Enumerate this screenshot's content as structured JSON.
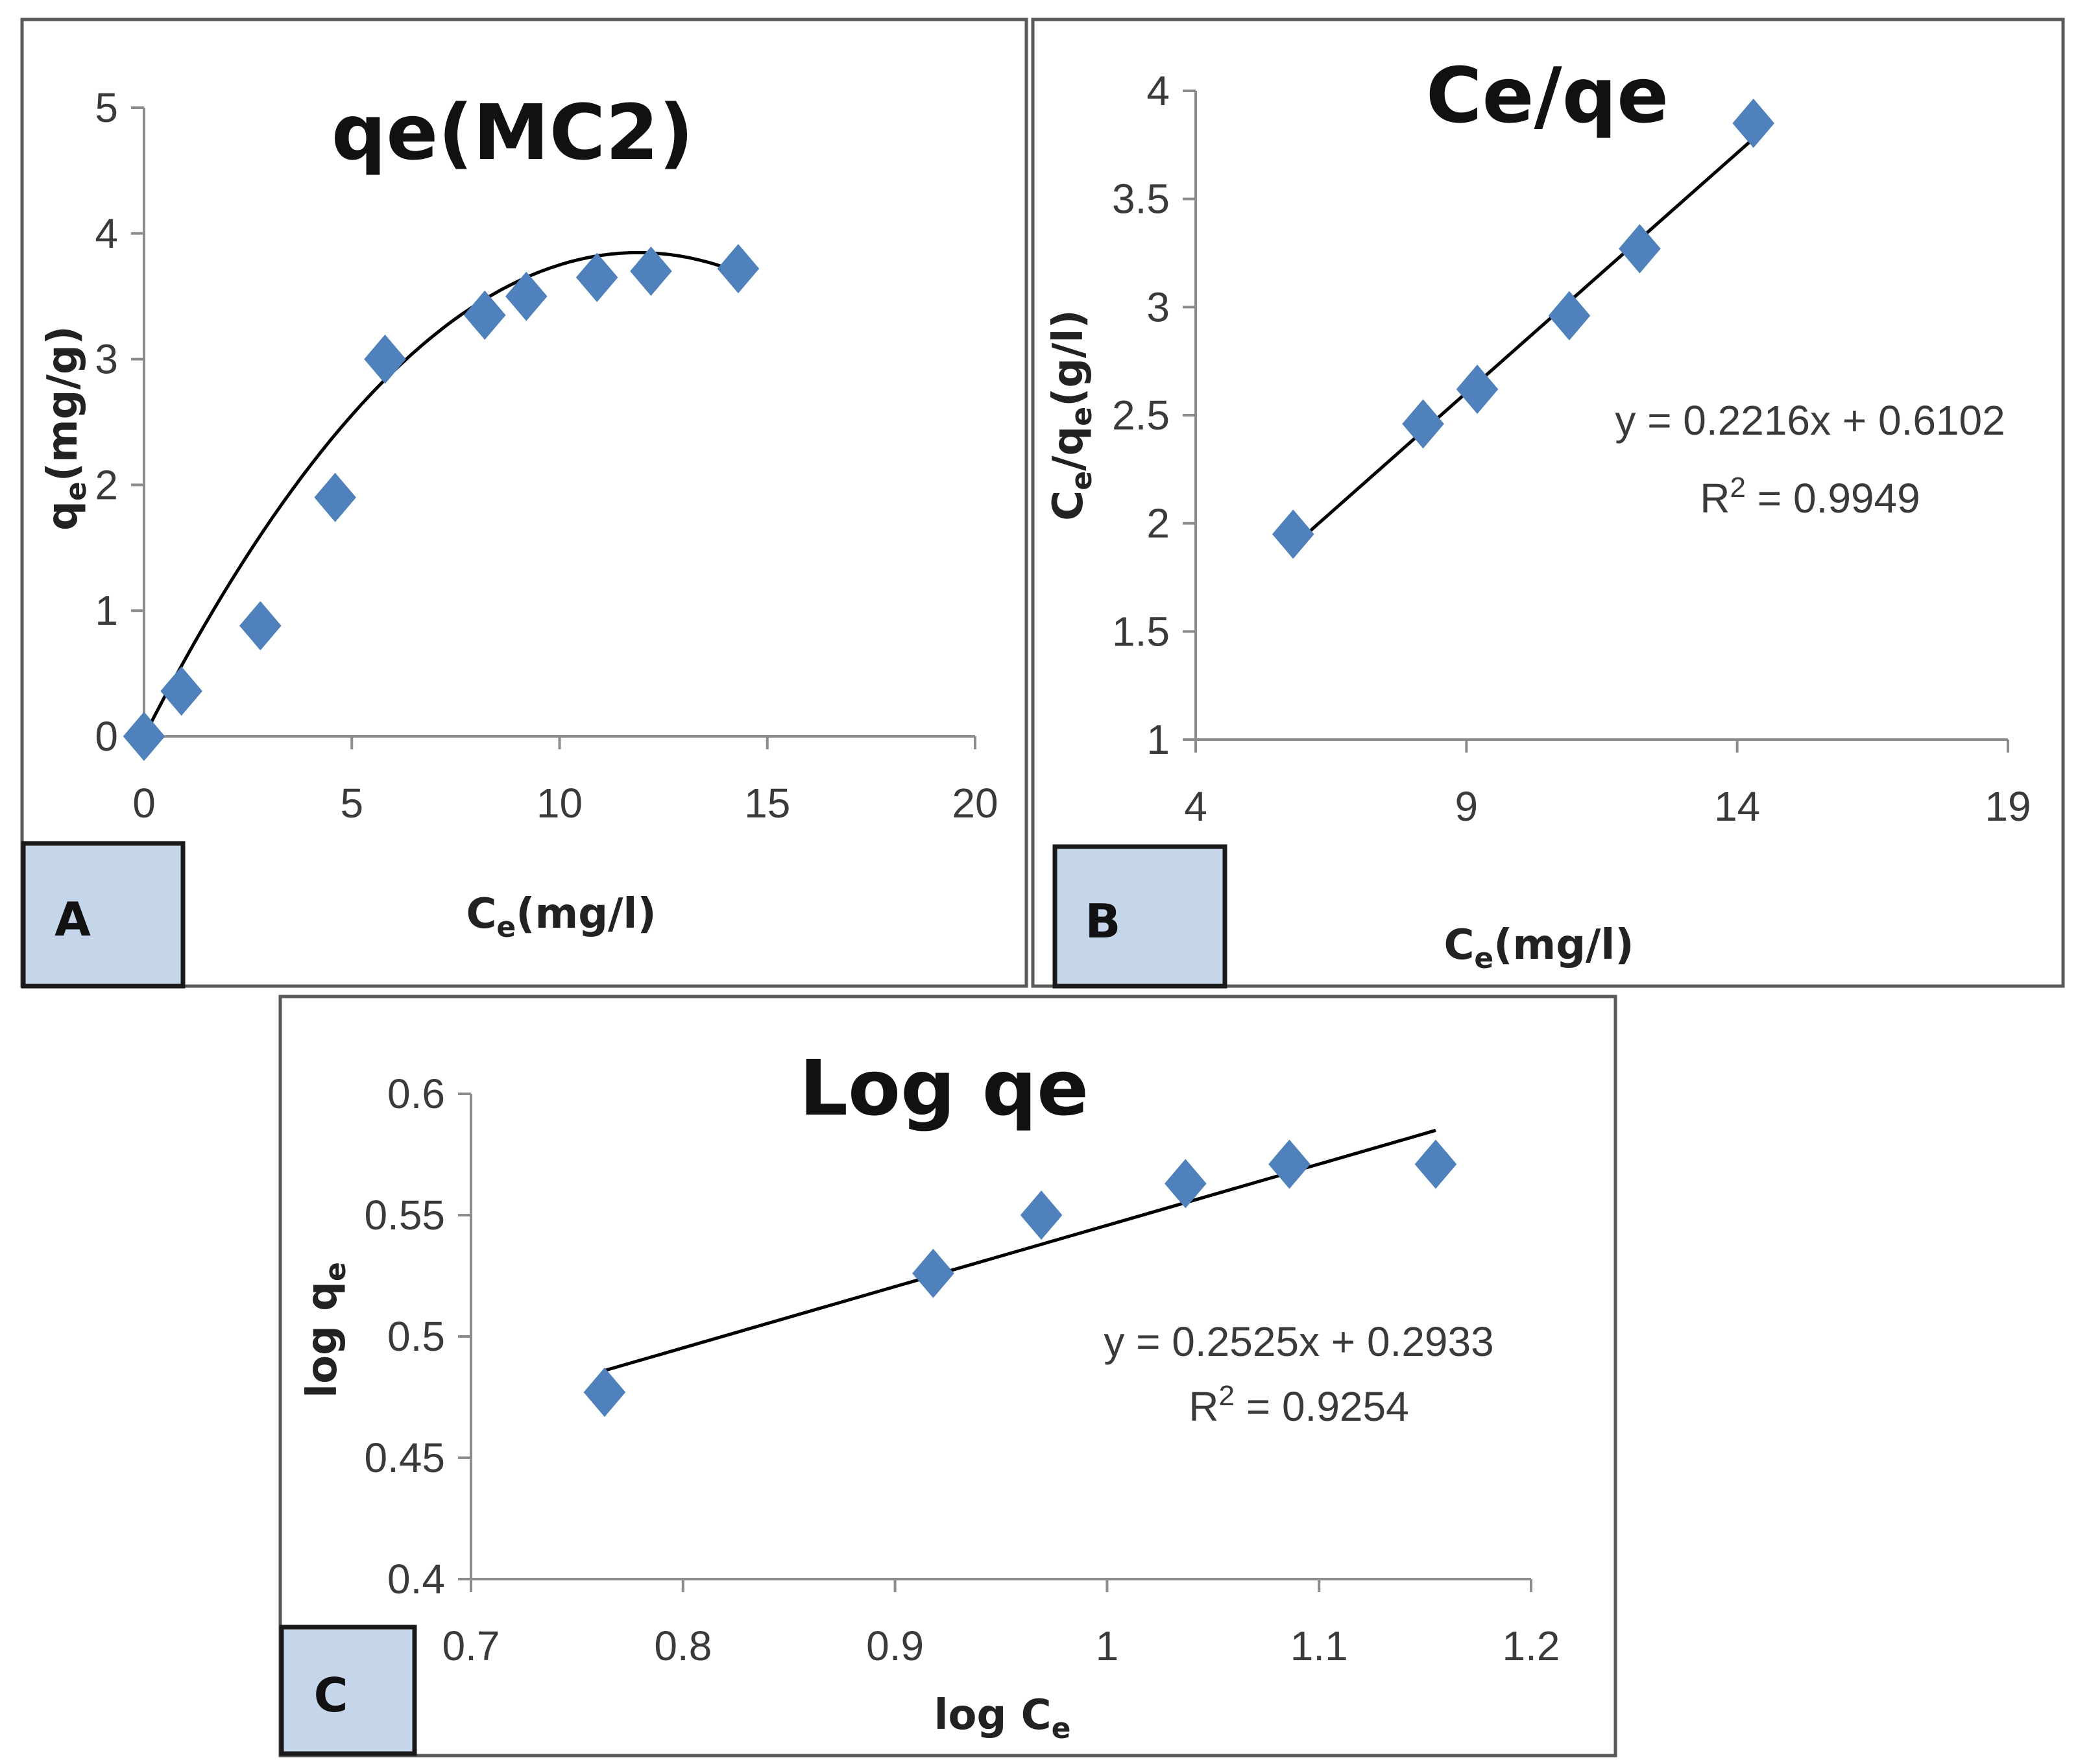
{
  "colors": {
    "marker": "#4f81bd",
    "line": "#000000",
    "tag_fill": "#c5d6ea",
    "frame": "#595959"
  },
  "chart_data": [
    {
      "id": "A",
      "type": "scatter",
      "panel_tag": "A",
      "title": "qe(MC2)",
      "xlabel_main": "C",
      "xlabel_sub": "e",
      "xlabel_tail": "(mg/l)",
      "ylabel_main": "q",
      "ylabel_sub": "e",
      "ylabel_tail": "(mg/g)",
      "xlim": [
        0,
        20
      ],
      "ylim": [
        0,
        5
      ],
      "xticks": [
        "0",
        "5",
        "10",
        "15",
        "20"
      ],
      "yticks": [
        "0",
        "1",
        "2",
        "3",
        "4",
        "5"
      ],
      "x": [
        0,
        0.9,
        2.8,
        4.6,
        5.8,
        8.2,
        9.2,
        10.9,
        12.2,
        14.3
      ],
      "y": [
        0,
        0.36,
        0.88,
        1.9,
        3.0,
        3.35,
        3.5,
        3.65,
        3.7,
        3.72
      ],
      "trendline": {
        "kind": "polynomial",
        "coeffs": [
          0,
          0.647,
          -0.0272
        ],
        "x_range": [
          0,
          14.3
        ]
      }
    },
    {
      "id": "B",
      "type": "scatter",
      "panel_tag": "B",
      "title": "Ce/qe",
      "xlabel_main": "C",
      "xlabel_sub": "e",
      "xlabel_tail": "(mg/l)",
      "ylabel_main": "C",
      "ylabel_sub": "e",
      "ylabel_mid": "/q",
      "ylabel_sub2": "e",
      "ylabel_tail": "(g/l)",
      "xlim": [
        4,
        19
      ],
      "ylim": [
        1,
        4
      ],
      "xticks": [
        "4",
        "9",
        "14",
        "19"
      ],
      "yticks": [
        "1",
        "1.5",
        "2",
        "2.5",
        "3",
        "3.5",
        "4"
      ],
      "x": [
        5.8,
        8.2,
        9.2,
        10.9,
        12.2,
        14.3
      ],
      "y": [
        1.95,
        2.46,
        2.62,
        2.96,
        3.27,
        3.85
      ],
      "equation": "y = 0.2216x + 0.6102",
      "r2_prefix": "R",
      "r2_sup": "2",
      "r2_value": " = 0.9949",
      "trendline": {
        "kind": "linear",
        "slope": 0.2216,
        "intercept": 0.6102,
        "x_range": [
          5.8,
          14.3
        ]
      }
    },
    {
      "id": "C",
      "type": "scatter",
      "panel_tag": "C",
      "title": "Log qe",
      "xlabel_main": "log C",
      "xlabel_sub": "e",
      "xlabel_tail": "",
      "ylabel_main": "log q",
      "ylabel_sub": "e",
      "ylabel_tail": "",
      "xlim": [
        0.7,
        1.2
      ],
      "ylim": [
        0.4,
        0.6
      ],
      "xticks": [
        "0.7",
        "0.8",
        "0.9",
        "1",
        "1.1",
        "1.2"
      ],
      "yticks": [
        "0.4",
        "0.45",
        "0.5",
        "0.55",
        "0.6"
      ],
      "x": [
        0.763,
        0.918,
        0.969,
        1.037,
        1.086,
        1.155
      ],
      "y": [
        0.477,
        0.526,
        0.55,
        0.563,
        0.571,
        0.571
      ],
      "equation": "y = 0.2525x + 0.2933",
      "r2_prefix": "R",
      "r2_sup": "2",
      "r2_value": " = 0.9254",
      "trendline": {
        "kind": "linear",
        "slope": 0.2525,
        "intercept": 0.2933,
        "x_range": [
          0.763,
          1.155
        ]
      }
    }
  ]
}
